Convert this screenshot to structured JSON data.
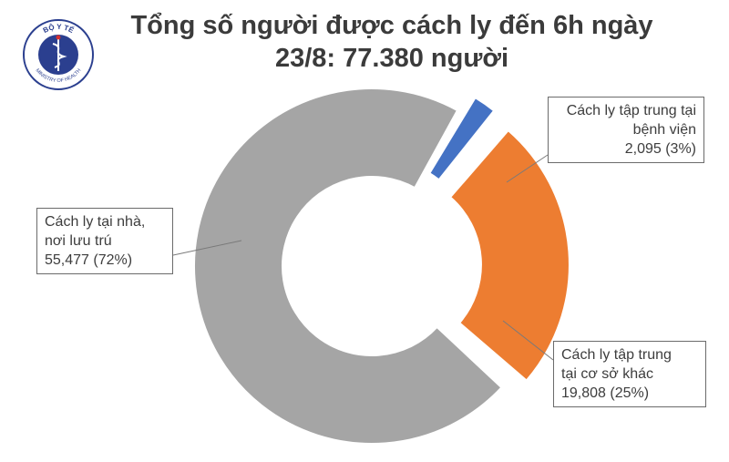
{
  "title": {
    "line1": "Tổng số người được cách ly đến 6h ngày",
    "line2": "23/8: 77.380 người"
  },
  "logo": {
    "icon": "ministry-of-health-emblem",
    "top_text": "BỘ Y TẾ",
    "bottom_text": "MINISTRY OF HEALTH"
  },
  "callouts": {
    "home": {
      "line1": "Cách ly tại nhà,",
      "line2": "nơi lưu trú",
      "line3": "55,477 (72%)"
    },
    "hospital": {
      "line1": "Cách ly tập trung tại",
      "line2": "bệnh viện",
      "line3": "2,095 (3%)"
    },
    "other": {
      "line1": "Cách ly tập trung",
      "line2": "tại cơ sở khác",
      "line3": "19,808 (25%)"
    }
  },
  "chart_data": {
    "type": "pie",
    "style": "donut",
    "title": "Tổng số người được cách ly đến 6h ngày 23/8: 77.380 người",
    "categories": [
      "Cách ly tập trung tại bệnh viện",
      "Cách ly tập trung tại cơ sở khác",
      "Cách ly tại nhà, nơi lưu trú"
    ],
    "values": [
      2095,
      19808,
      55477
    ],
    "percent_labels": [
      "3%",
      "25%",
      "72%"
    ],
    "colors": [
      "#4472c4",
      "#ed7d31",
      "#a5a5a5"
    ],
    "legend": "none"
  }
}
